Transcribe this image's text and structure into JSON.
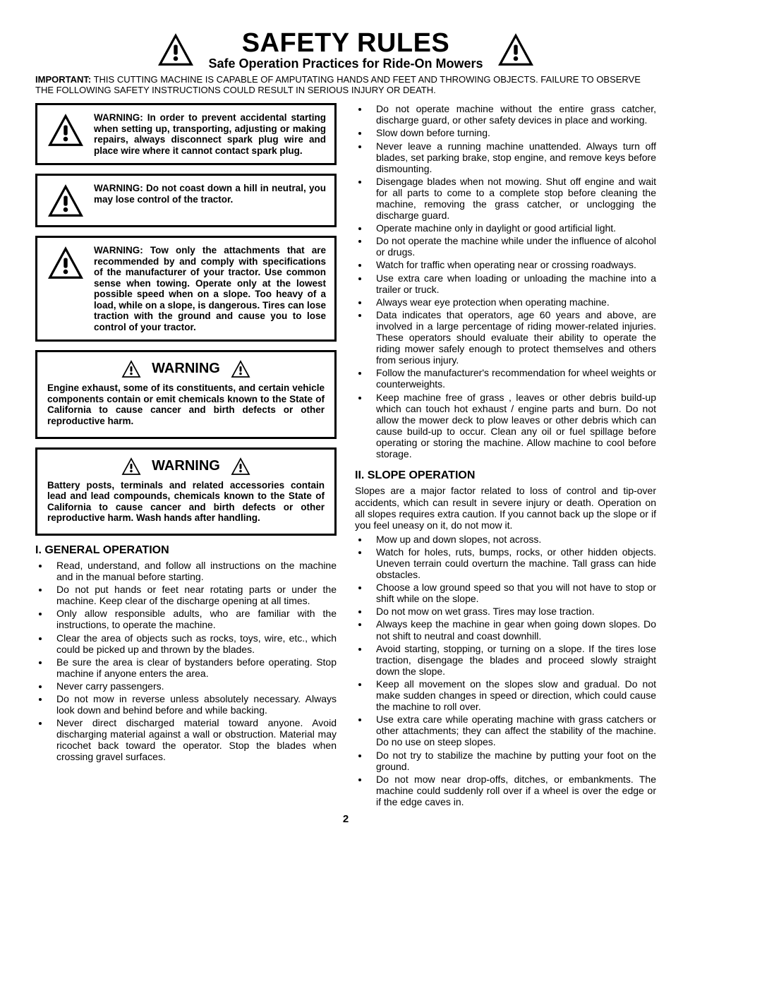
{
  "header": {
    "title": "SAFETY RULES",
    "subtitle": "Safe Operation Practices for Ride-On Mowers",
    "important_label": "IMPORTANT:",
    "important_text": "THIS CUTTING MACHINE IS CAPABLE OF AMPUTATING HANDS AND FEET AND THROWING OBJECTS.  FAILURE TO OBSERVE THE FOLLOWING SAFETY INSTRUCTIONS COULD RESULT IN SERIOUS INJURY OR DEATH."
  },
  "warning_boxes": [
    "WARNING:  In order to prevent accidental starting when setting up, transporting, adjusting or making repairs, always disconnect spark plug wire and place wire where it cannot contact spark plug.",
    "WARNING:  Do not coast down a hill in neutral, you may lose control of the tractor.",
    "WARNING:  Tow only the attachments that are recommended by and comply with specifications of the manufacturer of your tractor. Use common sense when towing. Operate only at the lowest possible speed when on a slope. Too heavy of a load, while on a slope, is dangerous.  Tires can lose traction with the ground and cause you to lose control of your tractor."
  ],
  "cal_warnings": [
    {
      "title": "WARNING",
      "body": "Engine exhaust, some of its constituents, and certain vehicle components contain or emit chemicals known to the State of California to cause cancer and birth defects or other reproductive harm."
    },
    {
      "title": "WARNING",
      "body": "Battery posts, terminals and related accessories contain lead and lead compounds, chemicals known to the State of California to cause cancer and birth defects or other reproductive harm. Wash hands after handling."
    }
  ],
  "section1": {
    "heading": "I. GENERAL OPERATION",
    "items_a": [
      "Read, understand, and follow all instructions on the machine and in the manual before starting.",
      "Do not put hands or feet near rotating parts or under the machine. Keep clear of the discharge opening at all times.",
      "Only allow responsible adults, who are familiar with the instructions, to operate the machine.",
      "Clear the area of objects such as  rocks, toys, wire, etc., which could be picked up and thrown by the blades.",
      "Be sure the area is clear of bystanders before operating.  Stop machine if anyone enters the area.",
      "Never carry passengers.",
      "Do not mow in reverse unless absolutely necessary. Always look down and behind before and while backing.",
      "Never direct discharged material toward anyone. Avoid discharging material against a wall or obstruction. Material may ricochet back toward the operator. Stop the blades when crossing gravel surfaces."
    ],
    "items_b": [
      "Do not operate machine without the entire grass catcher, discharge guard, or other safety devices in place and working.",
      "Slow down before turning.",
      "Never leave a running machine unattended.  Always turn off blades, set parking brake, stop engine, and remove keys before dismounting.",
      "Disengage blades when not mowing. Shut off engine and wait for all parts to come to a complete stop before cleaning the machine, removing the grass catcher, or unclogging the discharge guard.",
      "Operate machine only in daylight or good artificial light.",
      "Do not operate the machine while under the influence of alcohol or drugs.",
      "Watch for traffic when operating near or crossing roadways.",
      "Use extra care when loading or unloading the machine into a trailer or truck.",
      "Always wear eye protection when operating machine.",
      "Data indicates that operators, age 60 years and above, are involved in a large percentage of riding mower-related injuries.  These operators should evaluate their ability to operate the riding mower safely enough to protect themselves and others from serious injury.",
      "Follow the manufacturer's recommendation for wheel weights or counterweights.",
      "Keep machine free of grass , leaves or other debris build-up which can touch hot exhaust / engine parts and burn. Do not allow the mower deck to plow leaves or other debris which can cause build-up to occur. Clean any oil or fuel spillage before operating or storing the machine. Allow machine to cool before storage."
    ]
  },
  "section2": {
    "heading": "II. SLOPE OPERATION",
    "intro": "Slopes are a major factor related to loss of control and tip-over accidents, which can result in severe injury or death.  Operation on all slopes requires extra caution.  If you cannot back up the slope or if you feel uneasy on it, do not mow it.",
    "items": [
      "Mow up and down slopes, not across.",
      "Watch for holes, ruts, bumps, rocks, or other hidden objects.  Uneven terrain could overturn the machine. Tall grass can hide obstacles.",
      "Choose a low ground speed so that you will not have to stop or shift while on the slope.",
      "Do not mow on wet grass. Tires may lose traction.",
      "Always keep the machine in gear when going down slopes. Do not shift to neutral and coast downhill.",
      "Avoid starting, stopping, or turning on a slope.  If the tires lose traction,  disengage the blades and proceed slowly straight down the slope.",
      "Keep all movement on the slopes slow and gradual. Do not make sudden changes in speed or direction, which could cause the machine to roll over.",
      "Use extra care while operating machine with grass catchers or other attachments; they can affect the stability of the machine. Do no use on steep slopes.",
      "Do not  try to stabilize the machine by putting your foot on the ground.",
      "Do not mow near drop-offs, ditches, or embankments. The machine could suddenly roll over if a wheel is over the edge or if the edge caves in."
    ]
  },
  "page_number": "2",
  "colors": {
    "text": "#000000",
    "bg": "#ffffff",
    "border": "#000000"
  }
}
